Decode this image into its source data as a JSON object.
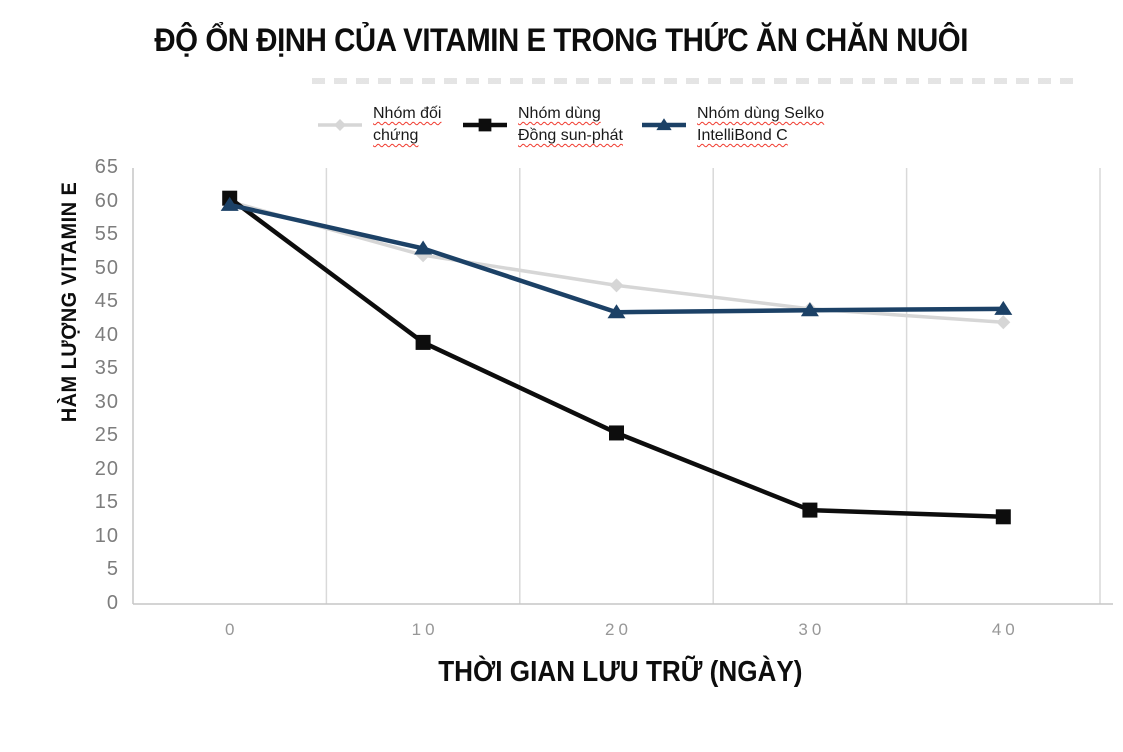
{
  "title": "ĐỘ ỔN ĐỊNH CỦA VITAMIN E TRONG THỨC ĂN CHĂN NUÔI",
  "colors": {
    "grid": "#d9d9d9",
    "axis": "#c6c6c6",
    "y_tick_text": "#7d7d7d",
    "x_tick_text": "#979797",
    "spellcheck_underline": "#f03a2e",
    "title_text": "#0d0d0d"
  },
  "chart_data": {
    "type": "line",
    "title": "ĐỘ ỔN ĐỊNH CỦA VITAMIN E TRONG THỨC ĂN CHĂN NUÔI",
    "xlabel": "THỜI GIAN LƯU TRỮ (NGÀY)",
    "ylabel": "HÀM LƯỢNG VITAMIN E",
    "x": [
      0,
      10,
      20,
      30,
      40
    ],
    "xtick_labels": [
      "0",
      "10",
      "20",
      "30",
      "40"
    ],
    "ylim": [
      0,
      65
    ],
    "yticks": [
      0,
      5,
      10,
      15,
      20,
      25,
      30,
      35,
      40,
      45,
      50,
      55,
      60,
      65
    ],
    "grid": "vertical gridlines at category boundaries only",
    "legend_position": "top",
    "series": [
      {
        "name": "Nhóm đối chứng",
        "legend_lines": [
          "Nhóm đối",
          "chứng"
        ],
        "color": "#d6d6d6",
        "marker": "diamond",
        "line_width": 3.5,
        "values": [
          60,
          52,
          47.5,
          44,
          42
        ]
      },
      {
        "name": "Nhóm dùng Đồng sun-phát",
        "legend_lines": [
          "Nhóm dùng",
          "Đồng sun-phát"
        ],
        "color": "#0d0d0d",
        "marker": "square",
        "line_width": 4.5,
        "values": [
          60.5,
          39,
          25.5,
          14,
          13
        ]
      },
      {
        "name": "Nhóm dùng Selko IntelliBond C",
        "legend_lines": [
          "Nhóm dùng Selko",
          "IntelliBond C"
        ],
        "color": "#1c4166",
        "marker": "triangle",
        "line_width": 4.5,
        "values": [
          59.5,
          53,
          43.5,
          43.8,
          44
        ]
      }
    ]
  }
}
